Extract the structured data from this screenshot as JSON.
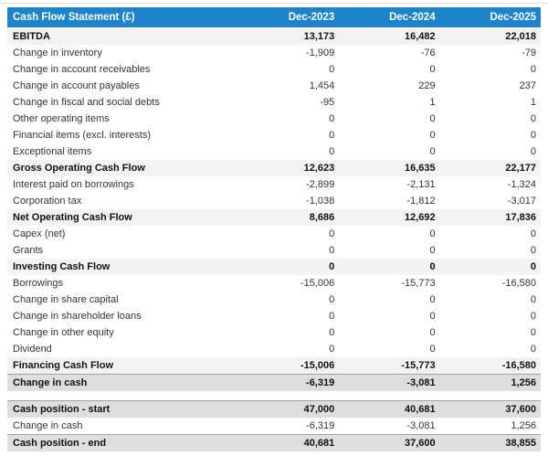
{
  "colors": {
    "header_bg": "#1d84cb",
    "header_text": "#ffffff",
    "subtotal_bg": "#f3f3f3",
    "summary_bg": "#dedede",
    "summary_border": "#a0a0a0",
    "normal_text": "#333333",
    "bold_text": "#111111",
    "page_bg": "#ffffff",
    "top_rule": "#dddddd"
  },
  "table": {
    "title": "Cash Flow Statement (£)",
    "columns": [
      "Dec-2023",
      "Dec-2024",
      "Dec-2025"
    ],
    "rows": [
      {
        "type": "subtotal",
        "label": "EBITDA",
        "values": [
          "13,173",
          "16,482",
          "22,018"
        ]
      },
      {
        "type": "normal",
        "label": "Change in inventory",
        "values": [
          "-1,909",
          "-76",
          "-79"
        ]
      },
      {
        "type": "normal",
        "label": "Change in account receivables",
        "values": [
          "0",
          "0",
          "0"
        ]
      },
      {
        "type": "normal",
        "label": "Change in account payables",
        "values": [
          "1,454",
          "229",
          "237"
        ]
      },
      {
        "type": "normal",
        "label": "Change in fiscal and social debts",
        "values": [
          "-95",
          "1",
          "1"
        ]
      },
      {
        "type": "normal",
        "label": "Other operating items",
        "values": [
          "0",
          "0",
          "0"
        ]
      },
      {
        "type": "normal",
        "label": "Financial items (excl. interests)",
        "values": [
          "0",
          "0",
          "0"
        ]
      },
      {
        "type": "normal",
        "label": "Exceptional items",
        "values": [
          "0",
          "0",
          "0"
        ]
      },
      {
        "type": "subtotal",
        "label": "Gross Operating Cash Flow",
        "values": [
          "12,623",
          "16,635",
          "22,177"
        ]
      },
      {
        "type": "normal",
        "label": "Interest paid on borrowings",
        "values": [
          "-2,899",
          "-2,131",
          "-1,324"
        ]
      },
      {
        "type": "normal",
        "label": "Corporation tax",
        "values": [
          "-1,038",
          "-1,812",
          "-3,017"
        ]
      },
      {
        "type": "subtotal",
        "label": "Net Operating Cash Flow",
        "values": [
          "8,686",
          "12,692",
          "17,836"
        ]
      },
      {
        "type": "normal",
        "label": "Capex (net)",
        "values": [
          "0",
          "0",
          "0"
        ]
      },
      {
        "type": "normal",
        "label": "Grants",
        "values": [
          "0",
          "0",
          "0"
        ]
      },
      {
        "type": "subtotal",
        "label": "Investing Cash Flow",
        "values": [
          "0",
          "0",
          "0"
        ]
      },
      {
        "type": "normal",
        "label": "Borrowings",
        "values": [
          "-15,006",
          "-15,773",
          "-16,580"
        ]
      },
      {
        "type": "normal",
        "label": "Change in share capital",
        "values": [
          "0",
          "0",
          "0"
        ]
      },
      {
        "type": "normal",
        "label": "Change in shareholder loans",
        "values": [
          "0",
          "0",
          "0"
        ]
      },
      {
        "type": "normal",
        "label": "Change in other equity",
        "values": [
          "0",
          "0",
          "0"
        ]
      },
      {
        "type": "normal",
        "label": "Dividend",
        "values": [
          "0",
          "0",
          "0"
        ]
      },
      {
        "type": "subtotal",
        "label": "Financing Cash Flow",
        "values": [
          "-15,006",
          "-15,773",
          "-16,580"
        ]
      },
      {
        "type": "summary",
        "label": "Change in cash",
        "values": [
          "-6,319",
          "-3,081",
          "1,256"
        ]
      },
      {
        "type": "spacer",
        "label": "",
        "values": []
      },
      {
        "type": "summary",
        "label": "Cash position - start",
        "values": [
          "47,000",
          "40,681",
          "37,600"
        ]
      },
      {
        "type": "normal",
        "label": "Change in cash",
        "values": [
          "-6,319",
          "-3,081",
          "1,256"
        ]
      },
      {
        "type": "summary",
        "label": "Cash position - end",
        "values": [
          "40,681",
          "37,600",
          "38,855"
        ]
      }
    ]
  }
}
